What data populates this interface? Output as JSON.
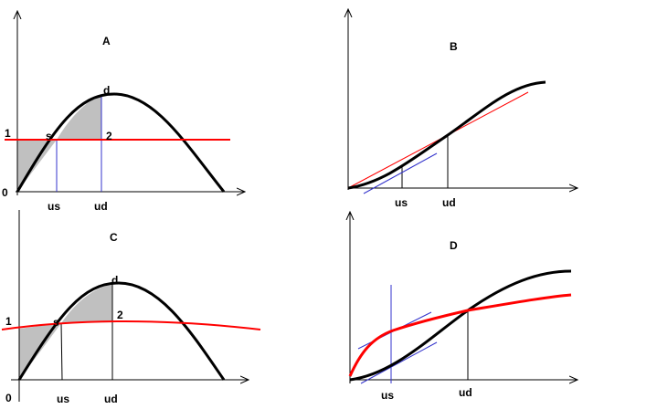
{
  "colors": {
    "curve": "#000000",
    "red": "#ff0000",
    "blue": "#3333cc",
    "shade": "#c0c0c0"
  },
  "panels": {
    "A": {
      "title": "A",
      "peak": "d",
      "point2": "2",
      "point_s": "s",
      "y_one": "1",
      "origin": "0",
      "us": "us",
      "ud": "ud"
    },
    "B": {
      "title": "B",
      "us": "us",
      "ud": "ud"
    },
    "C": {
      "title": "C",
      "peak": "d",
      "point2": "2",
      "point_s": "s",
      "y_one": "1",
      "origin": "0",
      "us": "us",
      "ud": "ud"
    },
    "D": {
      "title": "D",
      "us": "us",
      "ud": "ud"
    }
  }
}
